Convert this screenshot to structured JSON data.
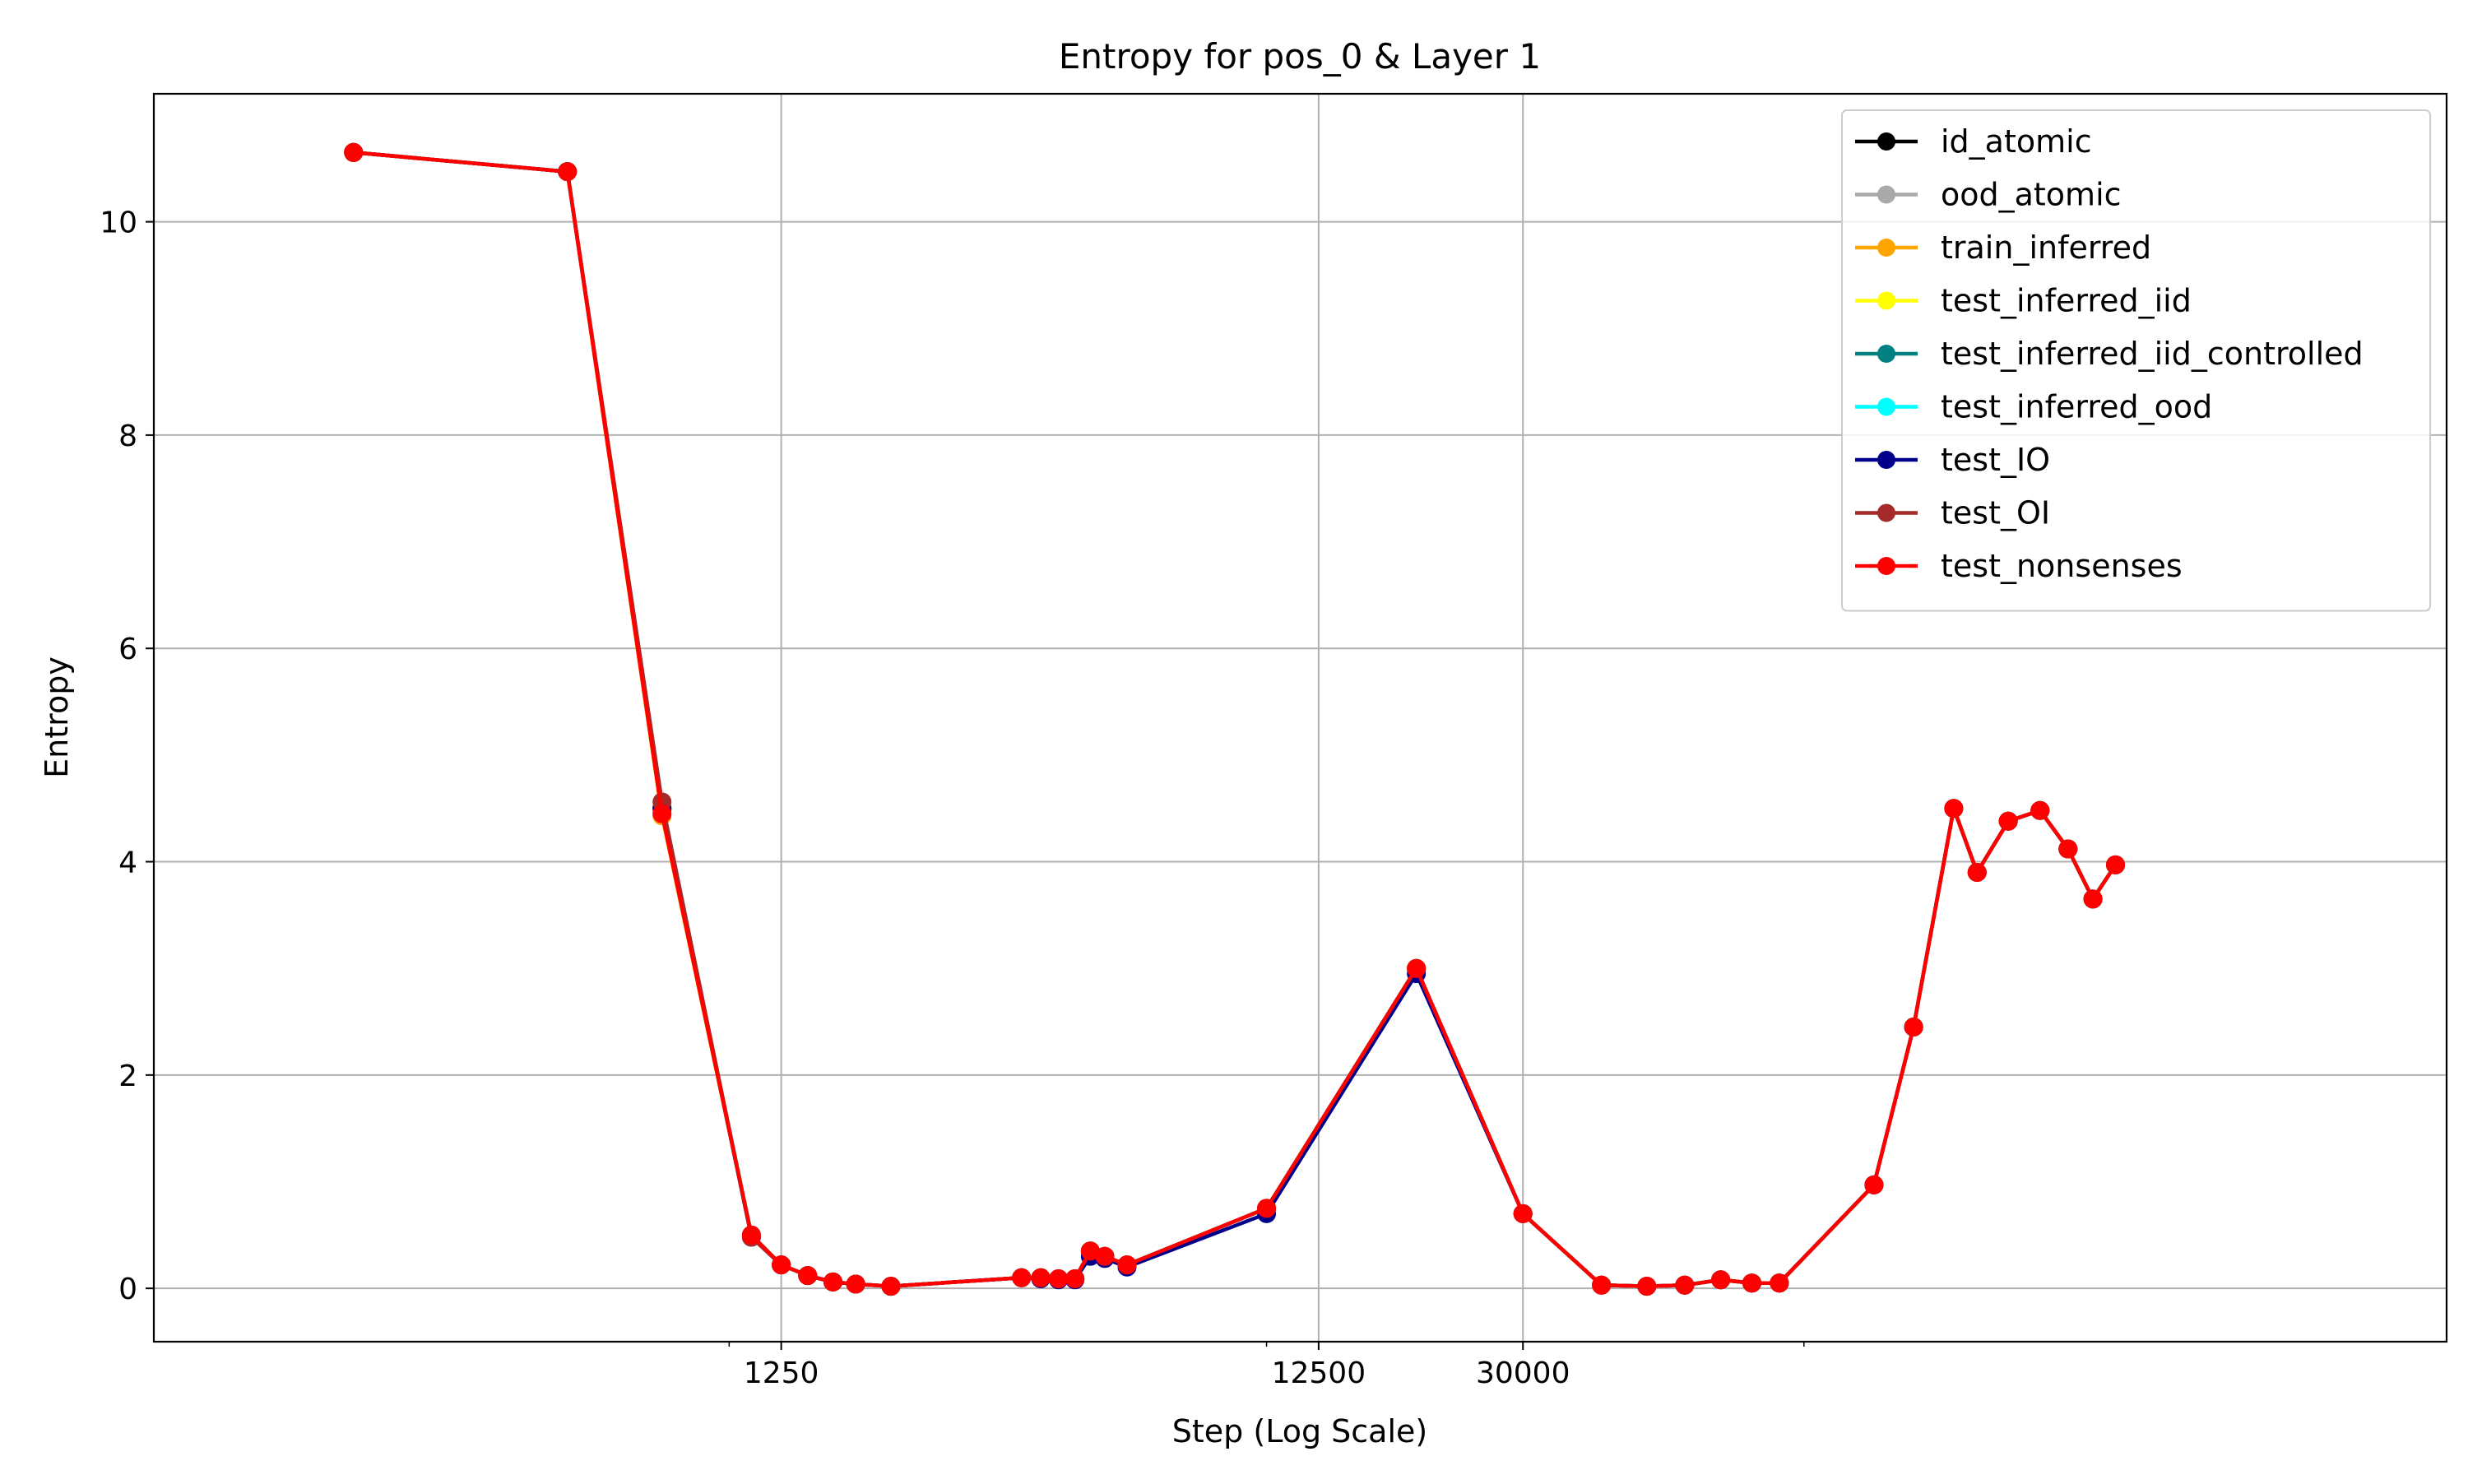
{
  "chart_data": {
    "type": "line",
    "title": "Entropy for pos_0 & Layer 1",
    "xlabel": "Step (Log Scale)",
    "ylabel": "Entropy",
    "x_scale": "log",
    "x_tick_labels": [
      "1250",
      "12500",
      "30000"
    ],
    "x_ticks": [
      1250,
      12500,
      30000
    ],
    "x_minor_ticks": [
      1000,
      10000,
      100000
    ],
    "xlim": [
      85,
      1570000
    ],
    "ylim": [
      -0.5,
      11.2
    ],
    "y_ticks": [
      0,
      2,
      4,
      6,
      8,
      10
    ],
    "grid": true,
    "legend_position": "top-right",
    "markers": true,
    "series": [
      {
        "name": "id_atomic",
        "color": "#000000"
      },
      {
        "name": "ood_atomic",
        "color": "#a9a9a9"
      },
      {
        "name": "train_inferred",
        "color": "#ffa500"
      },
      {
        "name": "test_inferred_iid",
        "color": "#ffff00"
      },
      {
        "name": "test_inferred_iid_controlled",
        "color": "#008080"
      },
      {
        "name": "test_inferred_ood",
        "color": "#00ffff"
      },
      {
        "name": "test_IO",
        "color": "#00008b"
      },
      {
        "name": "test_OI",
        "color": "#a52a2a"
      },
      {
        "name": "test_nonsenses",
        "color": "#ff0000"
      }
    ],
    "x": [
      200,
      500,
      750,
      1100,
      1250,
      1400,
      1560,
      1720,
      2000,
      3500,
      3800,
      4100,
      4400,
      4700,
      5000,
      5500,
      10000,
      19000,
      30000,
      42000,
      51000,
      60000,
      70000,
      80000,
      90000,
      135000,
      160000,
      190000,
      210000,
      240000,
      275000,
      310000,
      345000,
      380000
    ],
    "values": {
      "default": [
        10.65,
        10.47,
        4.5,
        0.5,
        0.22,
        0.12,
        0.06,
        0.04,
        0.02,
        0.1,
        0.1,
        0.09,
        0.09,
        0.35,
        0.3,
        0.22,
        0.75,
        3.0,
        0.7,
        0.03,
        0.02,
        0.03,
        0.08,
        0.05,
        0.05,
        0.97,
        2.45,
        4.5,
        3.9,
        4.38,
        4.48,
        4.12,
        3.65,
        3.97
      ],
      "test_IO": [
        10.65,
        10.47,
        4.5,
        0.48,
        0.22,
        0.12,
        0.06,
        0.04,
        0.02,
        0.1,
        0.09,
        0.08,
        0.08,
        0.3,
        0.28,
        0.2,
        0.7,
        2.95,
        0.7,
        0.03,
        0.02,
        0.03,
        0.08,
        0.05,
        0.05,
        0.97,
        2.45,
        4.5,
        3.9,
        4.38,
        4.48,
        4.12,
        3.65,
        3.97
      ],
      "test_OI": [
        10.65,
        10.47,
        4.56,
        0.48,
        0.22,
        0.12,
        0.06,
        0.04,
        0.02,
        0.1,
        0.1,
        0.09,
        0.09,
        0.35,
        0.3,
        0.22,
        0.75,
        3.0,
        0.7,
        0.03,
        0.02,
        0.03,
        0.08,
        0.05,
        0.05,
        0.97,
        2.45,
        4.5,
        3.9,
        4.38,
        4.48,
        4.12,
        3.65,
        3.97
      ],
      "train_inferred": [
        10.65,
        10.47,
        4.43,
        0.5,
        0.22,
        0.12,
        0.06,
        0.04,
        0.02,
        0.1,
        0.1,
        0.09,
        0.09,
        0.35,
        0.3,
        0.22,
        0.75,
        3.0,
        0.7,
        0.03,
        0.02,
        0.03,
        0.08,
        0.05,
        0.05,
        0.97,
        2.45,
        4.5,
        3.9,
        4.38,
        4.48,
        4.12,
        3.65,
        3.97
      ],
      "test_nonsenses": [
        10.65,
        10.47,
        4.45,
        0.5,
        0.22,
        0.12,
        0.06,
        0.04,
        0.02,
        0.1,
        0.1,
        0.09,
        0.09,
        0.35,
        0.3,
        0.22,
        0.75,
        3.0,
        0.7,
        0.03,
        0.02,
        0.03,
        0.08,
        0.05,
        0.05,
        0.97,
        2.45,
        4.5,
        3.9,
        4.38,
        4.48,
        4.12,
        3.65,
        3.97
      ]
    }
  }
}
